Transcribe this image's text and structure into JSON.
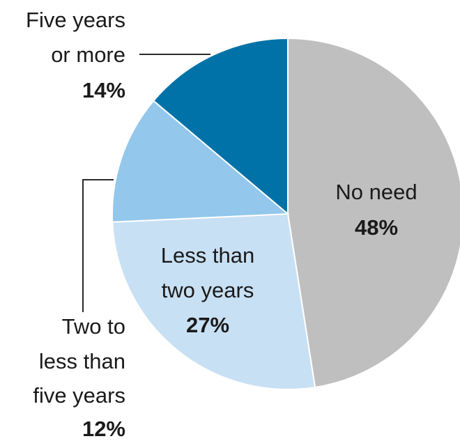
{
  "chart_data": {
    "type": "pie",
    "slices": [
      {
        "label_lines": [
          "No need"
        ],
        "value_label": "48%",
        "value": 48,
        "color": "#bfbfbf"
      },
      {
        "label_lines": [
          "Less than",
          "two years"
        ],
        "value_label": "27%",
        "value": 27,
        "color": "#c8e0f4"
      },
      {
        "label_lines": [
          "Two to",
          "less than",
          "five years"
        ],
        "value_label": "12%",
        "value": 12,
        "color": "#93c7ec"
      },
      {
        "label_lines": [
          "Five years",
          "or more"
        ],
        "value_label": "14%",
        "value": 14,
        "color": "#0072a8"
      }
    ],
    "start": "12 o'clock",
    "direction": "clockwise"
  }
}
